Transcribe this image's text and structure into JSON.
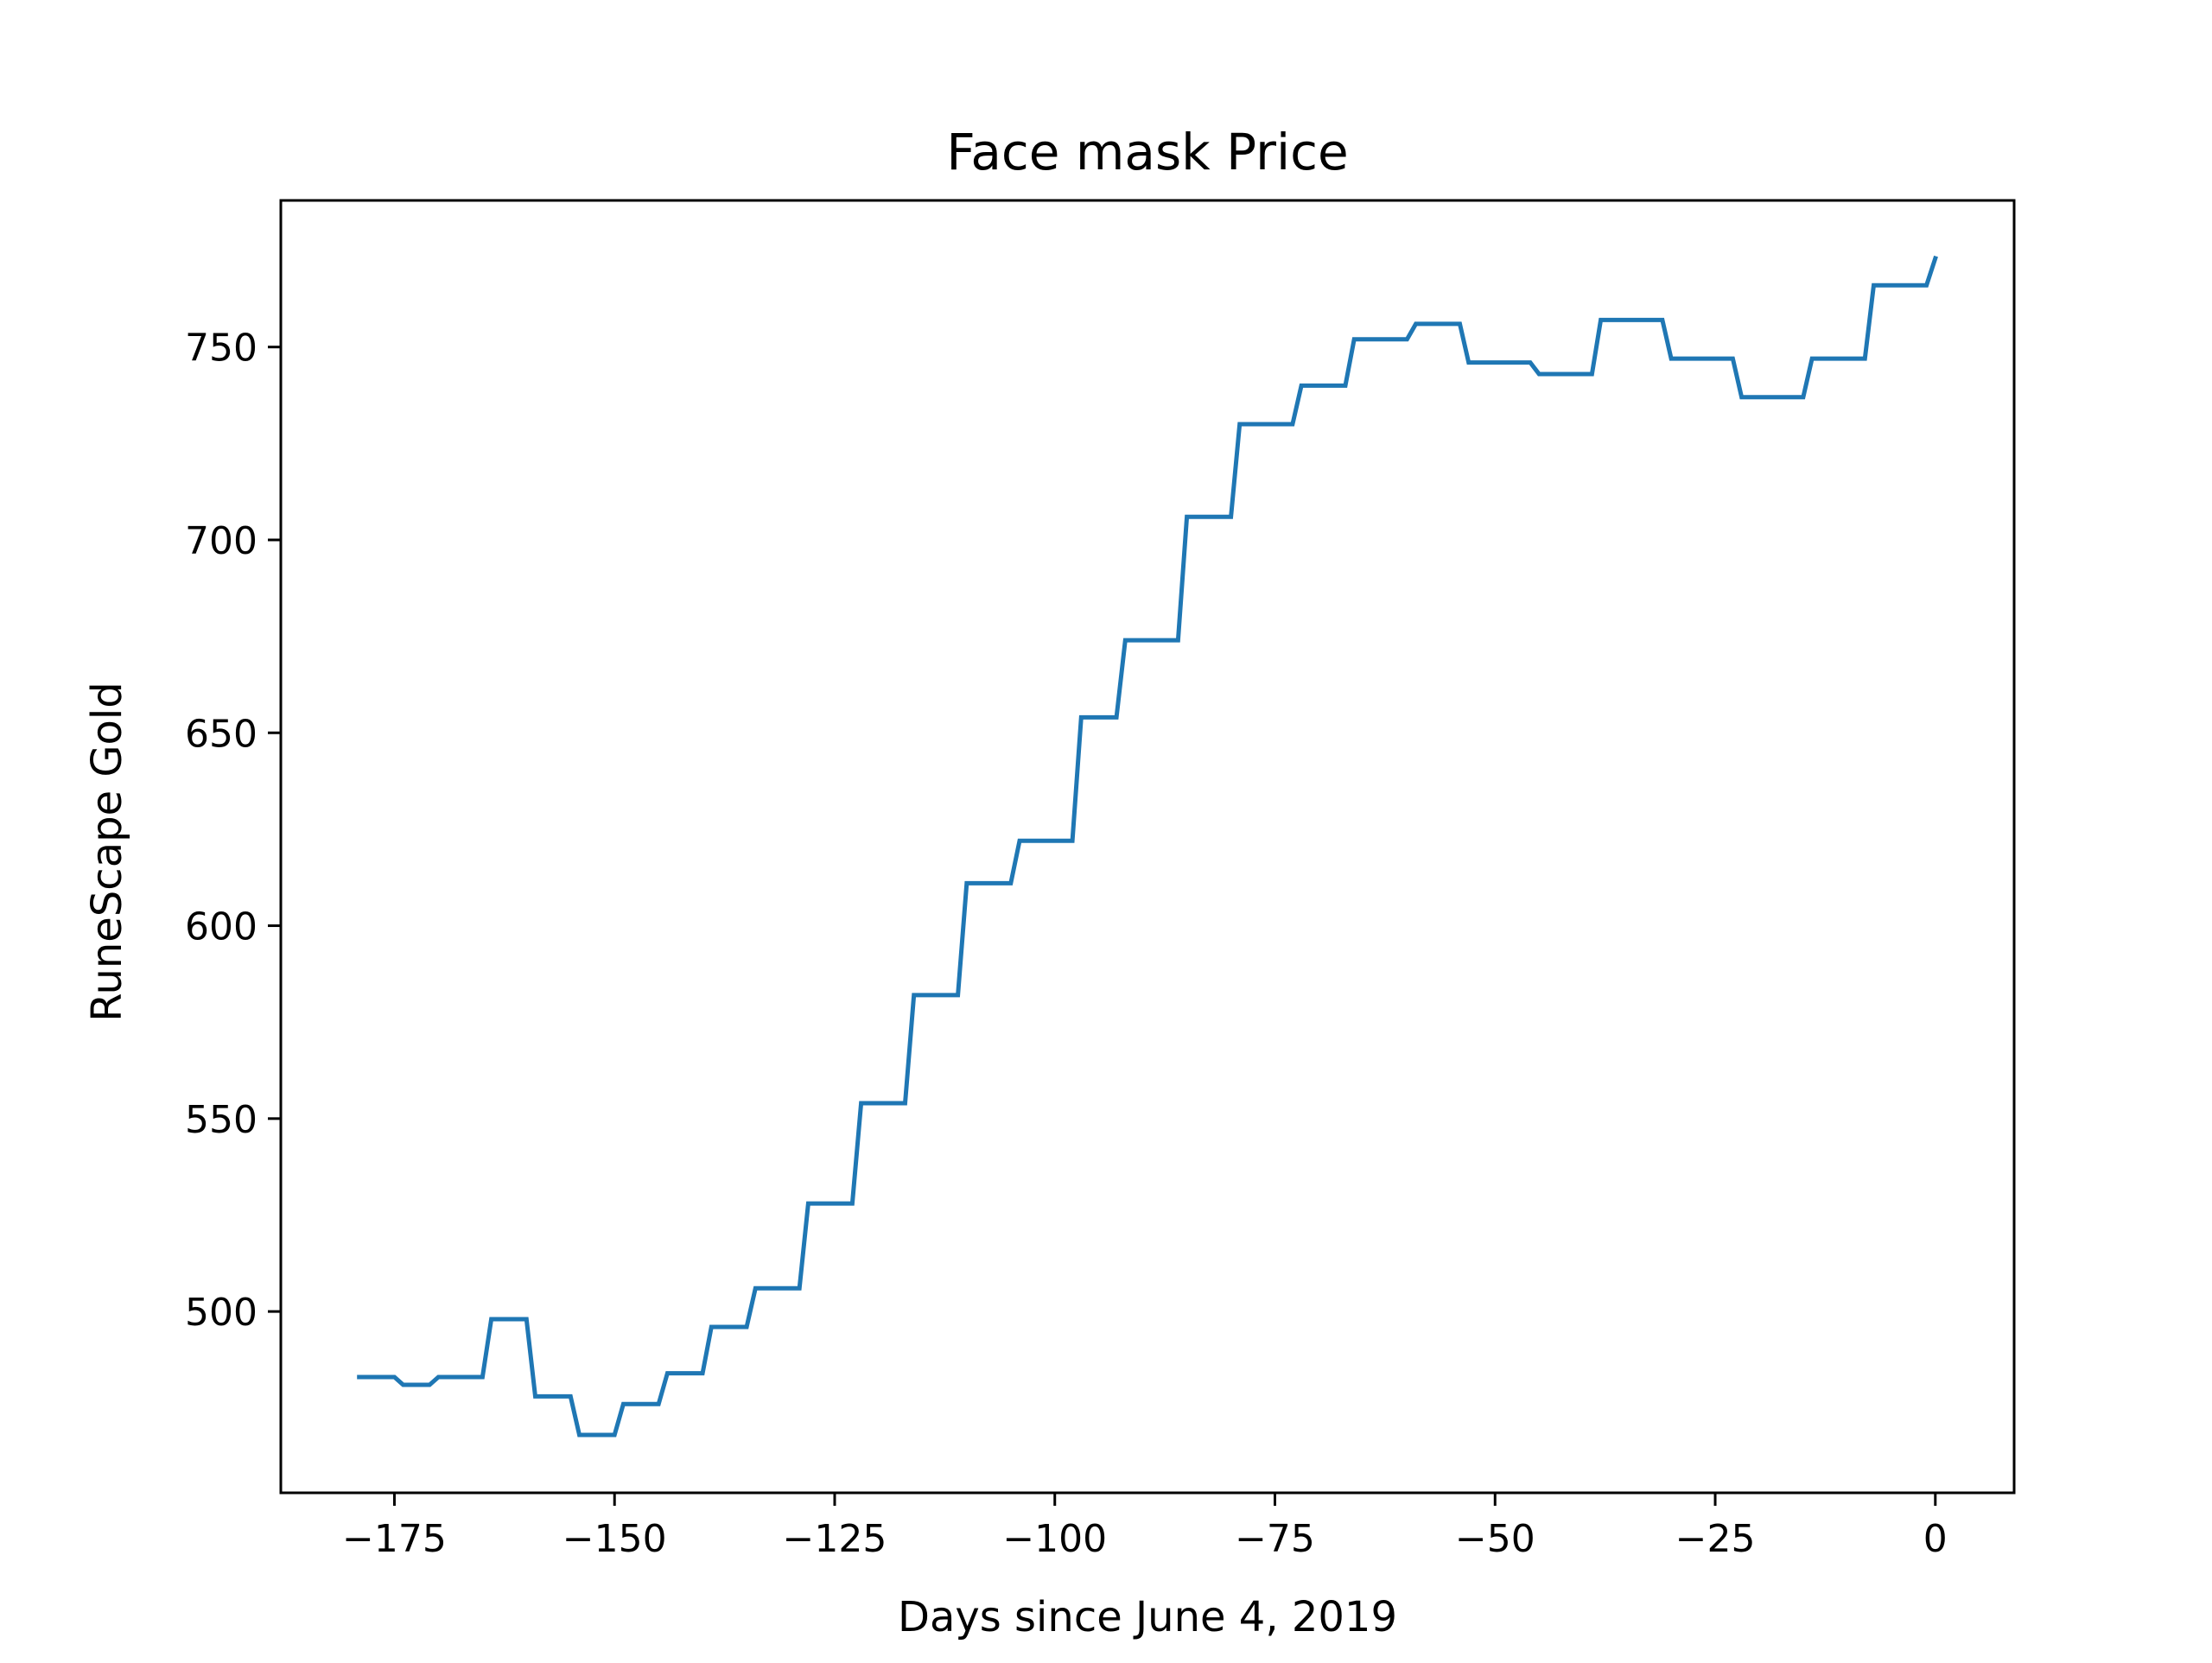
{
  "chart_data": {
    "type": "line",
    "title": "Face mask Price",
    "xlabel": "Days since June 4, 2019",
    "ylabel": "RuneScape Gold",
    "xlim": [
      -187.9,
      8.95
    ],
    "ylim": [
      453,
      788
    ],
    "xticks": [
      -175,
      -150,
      -125,
      -100,
      -75,
      -50,
      -25,
      0
    ],
    "xtick_labels": [
      "−175",
      "−150",
      "−125",
      "−100",
      "−75",
      "−50",
      "−25",
      "0"
    ],
    "yticks": [
      500,
      550,
      600,
      650,
      700,
      750
    ],
    "ytick_labels": [
      "500",
      "550",
      "600",
      "650",
      "700",
      "750"
    ],
    "grid": false,
    "legend": false,
    "series": [
      {
        "color": "#1f77b4",
        "x": [
          -179,
          -175,
          -174,
          -171,
          -170,
          -165,
          -164,
          -160,
          -159,
          -155,
          -154,
          -150,
          -149,
          -145,
          -144,
          -140,
          -139,
          -135,
          -134,
          -129,
          -128,
          -123,
          -122,
          -117,
          -116,
          -111,
          -110,
          -105,
          -104,
          -98,
          -97,
          -93,
          -92,
          -86,
          -85,
          -80,
          -79,
          -73,
          -72,
          -67,
          -66,
          -60,
          -59,
          -54,
          -53,
          -46,
          -45,
          -39,
          -38,
          -31,
          -30,
          -23,
          -22,
          -15,
          -14,
          -8,
          -7,
          -1,
          0
        ],
        "y": [
          483,
          483,
          481,
          481,
          483,
          483,
          498,
          498,
          478,
          478,
          468,
          468,
          476,
          476,
          484,
          484,
          496,
          496,
          506,
          506,
          528,
          528,
          554,
          554,
          582,
          582,
          611,
          611,
          622,
          622,
          654,
          654,
          674,
          674,
          706,
          706,
          730,
          730,
          740,
          740,
          752,
          752,
          756,
          756,
          746,
          746,
          743,
          743,
          757,
          757,
          747,
          747,
          737,
          737,
          747,
          747,
          766,
          766,
          773
        ]
      }
    ]
  }
}
